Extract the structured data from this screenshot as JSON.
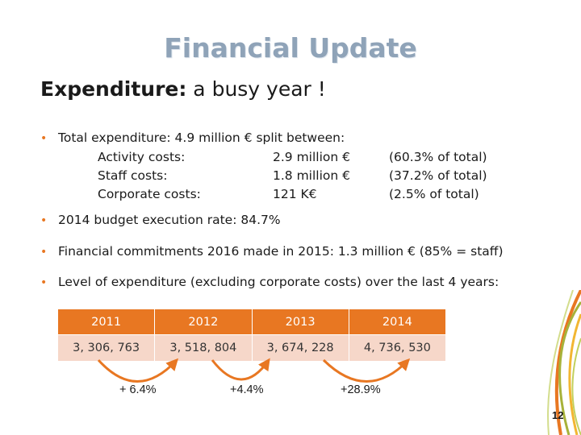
{
  "slide": {
    "title": "Financial Update",
    "subtitle_lead": "Expenditure:",
    "subtitle_rest": " a busy year !",
    "page_number": "12"
  },
  "bullets": [
    "Total expenditure: 4.9 million € split between:",
    "2014 budget execution rate: 84.7%",
    "Financial commitments 2016 made in 2015: 1.3 million € (85% = staff)",
    "Level of expenditure (excluding corporate costs) over the last 4 years:"
  ],
  "split": [
    {
      "label": "Activity costs:",
      "amount": "2.9 million €",
      "share": "(60.3% of total)"
    },
    {
      "label": "Staff costs:",
      "amount": "1.8 million €",
      "share": "(37.2% of total)"
    },
    {
      "label": "Corporate costs:",
      "amount": "121 K€",
      "share": "(2.5% of total)"
    }
  ],
  "expenditure_table": {
    "years": [
      "2011",
      "2012",
      "2013",
      "2014"
    ],
    "values": [
      "3, 306, 763",
      "3, 518, 804",
      "3, 674, 228",
      "4, 736, 530"
    ]
  },
  "growth_labels": [
    "+ 6.4%",
    "+4.4%",
    "+28.9%"
  ],
  "colors": {
    "accent": "#e87722",
    "title": "#8fa3b8",
    "table_row": "#f6d7c9",
    "bullet": "#e87722"
  }
}
